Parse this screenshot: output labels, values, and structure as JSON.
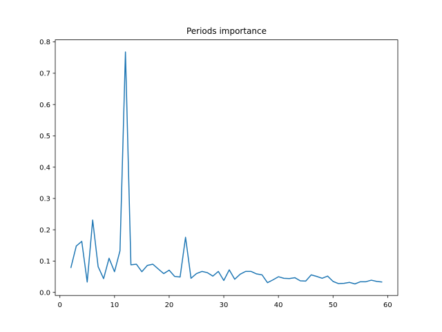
{
  "chart_data": {
    "type": "line",
    "title": "Periods importance",
    "xlabel": "",
    "ylabel": "",
    "xlim": [
      -0.85,
      61.85
    ],
    "ylim": [
      -0.0099,
      0.8067
    ],
    "xticks": [
      0,
      10,
      20,
      30,
      40,
      50,
      60
    ],
    "yticks": [
      0.0,
      0.1,
      0.2,
      0.3,
      0.4,
      0.5,
      0.6,
      0.7,
      0.8
    ],
    "grid": false,
    "line_color": "#1f77b4",
    "x": [
      2,
      3,
      4,
      5,
      6,
      7,
      8,
      9,
      10,
      11,
      12,
      13,
      14,
      15,
      16,
      17,
      18,
      19,
      20,
      21,
      22,
      23,
      24,
      25,
      26,
      27,
      28,
      29,
      30,
      31,
      32,
      33,
      34,
      35,
      36,
      37,
      38,
      39,
      40,
      41,
      42,
      43,
      44,
      45,
      46,
      47,
      48,
      49,
      50,
      51,
      52,
      53,
      54,
      55,
      56,
      57,
      58,
      59
    ],
    "values": [
      0.078,
      0.148,
      0.163,
      0.033,
      0.231,
      0.082,
      0.044,
      0.109,
      0.066,
      0.133,
      0.768,
      0.088,
      0.09,
      0.066,
      0.086,
      0.09,
      0.075,
      0.06,
      0.071,
      0.051,
      0.049,
      0.176,
      0.045,
      0.06,
      0.067,
      0.063,
      0.052,
      0.067,
      0.038,
      0.072,
      0.042,
      0.058,
      0.067,
      0.067,
      0.059,
      0.056,
      0.031,
      0.04,
      0.05,
      0.045,
      0.044,
      0.047,
      0.037,
      0.036,
      0.056,
      0.051,
      0.045,
      0.052,
      0.035,
      0.028,
      0.029,
      0.032,
      0.027,
      0.034,
      0.034,
      0.039,
      0.035,
      0.033
    ]
  }
}
